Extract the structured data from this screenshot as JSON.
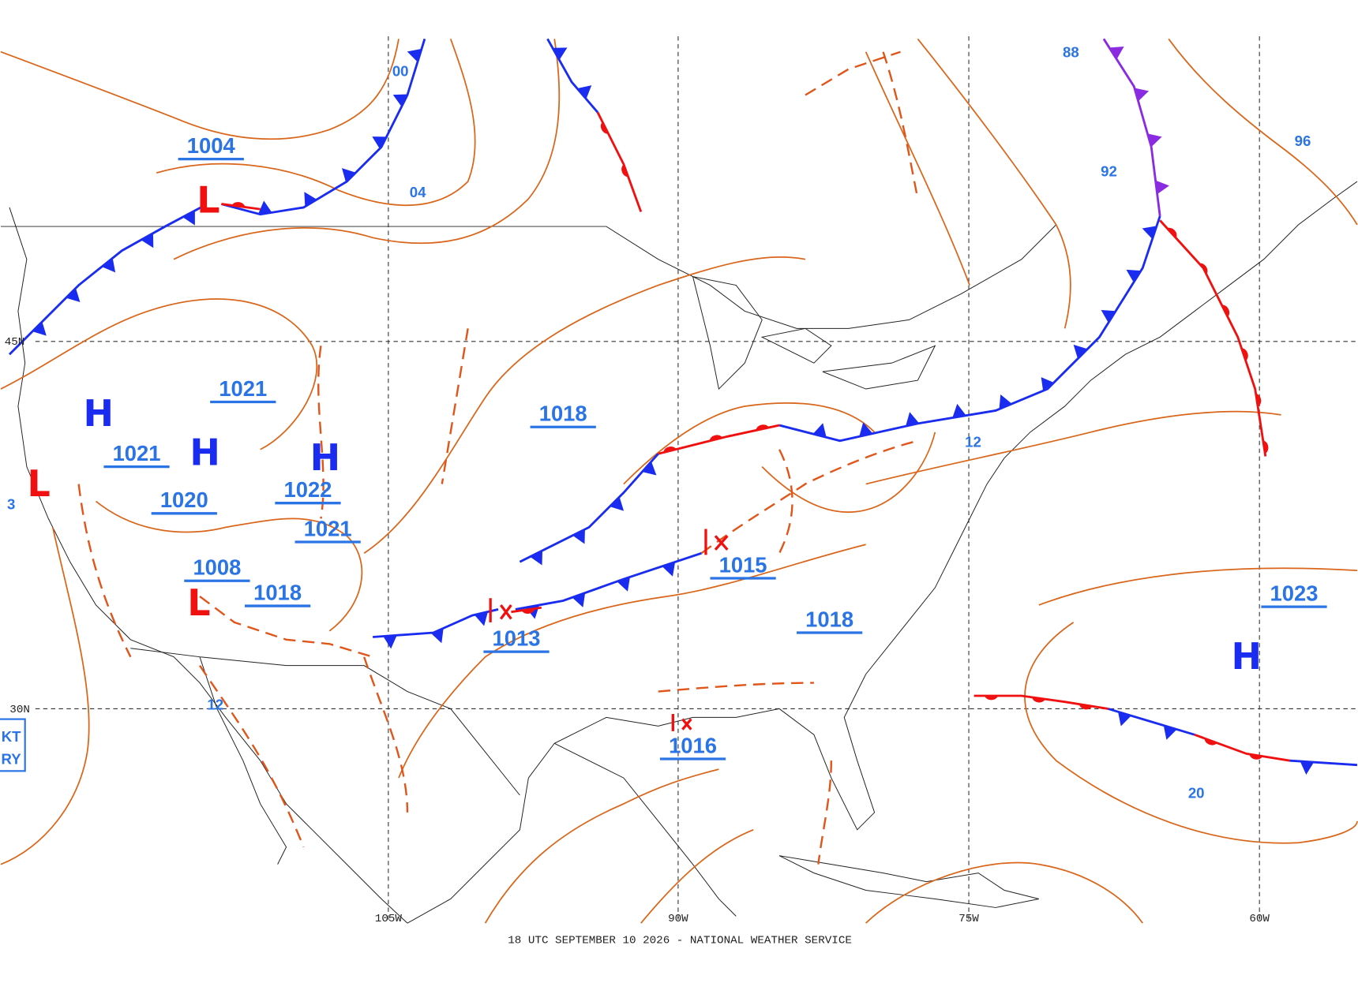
{
  "map": {
    "footer": "18 UTC SEPTEMBER 10 2026 - NATIONAL WEATHER SERVICE",
    "latitude_labels": [
      "45N",
      "30N"
    ],
    "longitude_labels": [
      "105W",
      "90W",
      "75W",
      "60W"
    ],
    "center_letters": [
      "H",
      "H",
      "H",
      "H",
      "L",
      "L",
      "L"
    ],
    "central_pressures": [
      "1004",
      "1021",
      "1021",
      "1020",
      "1022",
      "1021",
      "1008",
      "1018",
      "1018",
      "1013",
      "1015",
      "1018",
      "1016",
      "1023"
    ],
    "isobar_labels": [
      "00",
      "04",
      "88",
      "92",
      "96",
      "12",
      "12",
      "20",
      "3"
    ],
    "legend_box": [
      "KT",
      "RY"
    ]
  }
}
